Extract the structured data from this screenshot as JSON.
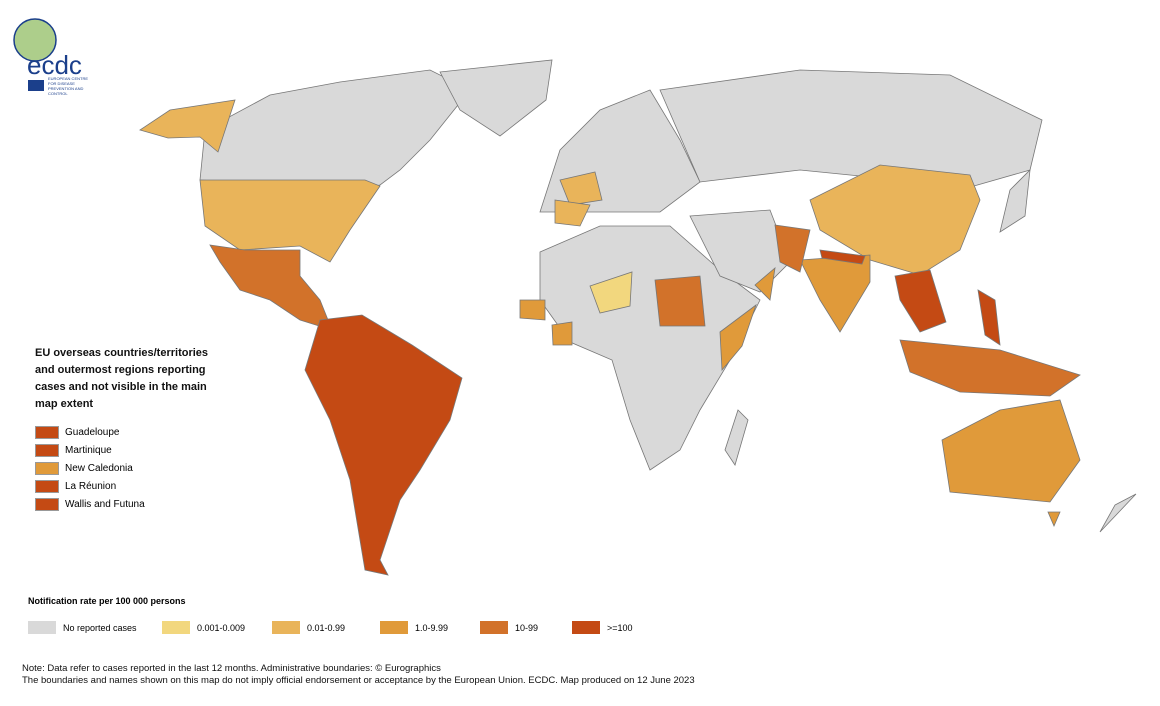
{
  "logo": {
    "name": "ecdc",
    "subtitle": "EUROPEAN CENTRE FOR DISEASE PREVENTION AND CONTROL"
  },
  "overseas": {
    "title": "EU overseas countries/territories and outermost regions reporting cases and not visible in the main map extent",
    "items": [
      {
        "label": "Guadeloupe",
        "color": "#c44a14"
      },
      {
        "label": "Martinique",
        "color": "#c44a14"
      },
      {
        "label": "New Caledonia",
        "color": "#e09a3a"
      },
      {
        "label": "La Réunion",
        "color": "#c44a14"
      },
      {
        "label": "Wallis and Futuna",
        "color": "#c44a14"
      }
    ]
  },
  "legend": {
    "title": "Notification rate per 100 000 persons",
    "items": [
      {
        "label": "No reported cases",
        "color": "#d9d9d9"
      },
      {
        "label": "0.001-0.009",
        "color": "#f2d77e"
      },
      {
        "label": "0.01-0.99",
        "color": "#e9b45a"
      },
      {
        "label": "1.0-9.99",
        "color": "#e09a3a"
      },
      {
        "label": "10-99",
        "color": "#d2722a"
      },
      {
        "label": ">=100",
        "color": "#c44a14"
      }
    ]
  },
  "notes": [
    "Note: Data refer to cases reported in the last 12 months. Administrative boundaries: © Eurographics",
    "The boundaries and names shown on this map do not imply official endorsement or acceptance by the European Union. ECDC. Map produced on 12 June 2023"
  ]
}
